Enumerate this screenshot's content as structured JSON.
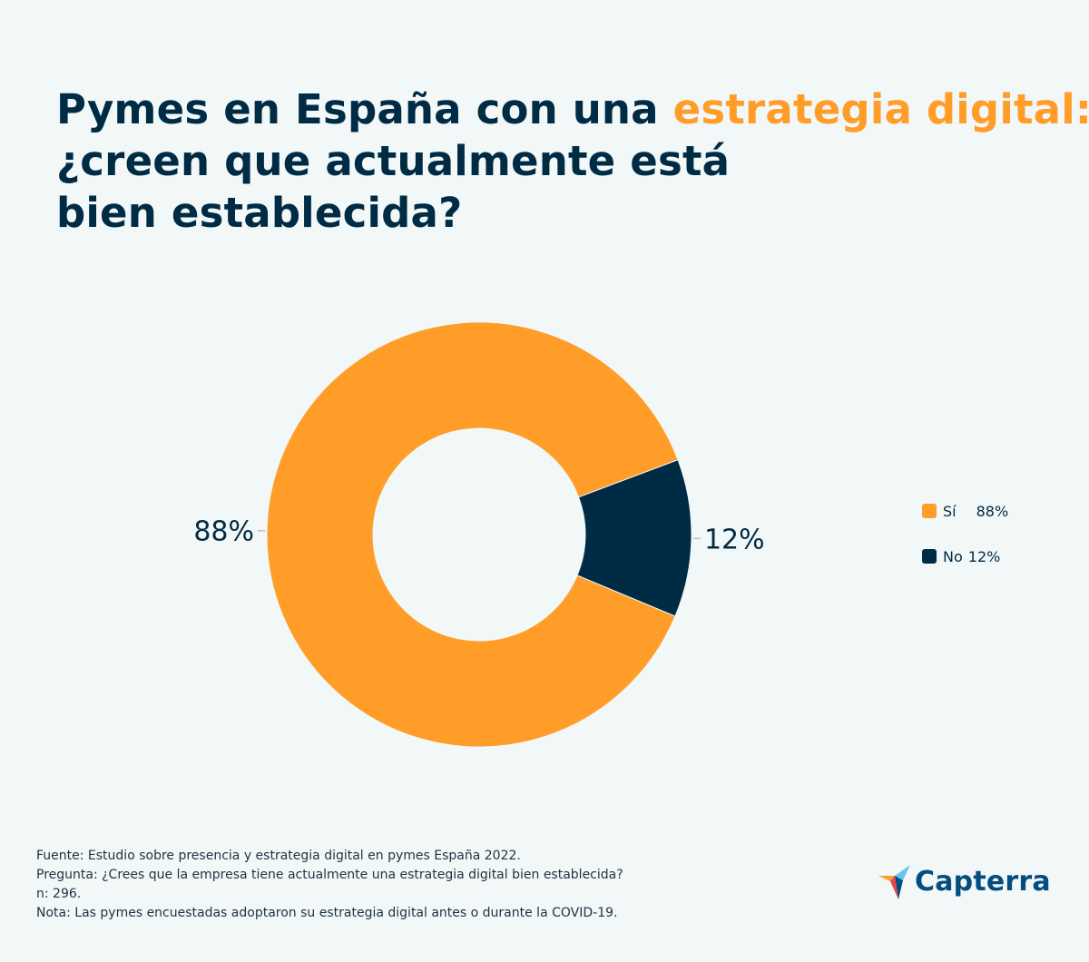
{
  "title": {
    "line1_prefix": "Pymes en España con una ",
    "line1_accent": "estrategia digital:",
    "line2": "¿creen que actualmente está",
    "line3": "bien establecida?"
  },
  "colors": {
    "background": "#f2f7f7",
    "dark": "#002b45",
    "accent": "#ff9d28",
    "logo_text": "#044d80"
  },
  "chart_data": {
    "type": "pie",
    "variant": "donut",
    "categories": [
      "Sí",
      "No"
    ],
    "values": [
      88,
      12
    ],
    "unit": "%",
    "data_labels": [
      "88%",
      "12%"
    ],
    "colors": [
      "#ff9d28",
      "#002b45"
    ],
    "legend": [
      {
        "label": "Sí",
        "value": "88%"
      },
      {
        "label": "No",
        "value": "12%"
      }
    ],
    "legend_position": "right"
  },
  "footnotes": [
    "Fuente: Estudio sobre presencia y estrategia digital en pymes España 2022.",
    "Pregunta: ¿Crees que la empresa tiene actualmente una estrategia digital bien establecida?",
    "n: 296.",
    "Nota: Las pymes encuestadas adoptaron su estrategia digital antes o durante la COVID-19."
  ],
  "logo": {
    "text": "Capterra",
    "icon": "capterra-arrow-icon"
  }
}
